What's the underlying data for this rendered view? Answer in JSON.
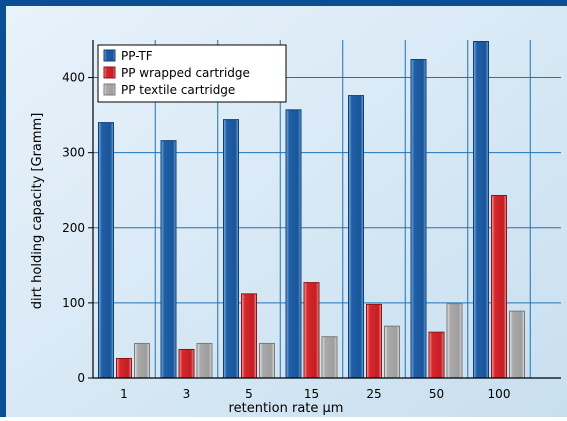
{
  "chart_data": {
    "type": "bar",
    "title": "",
    "xlabel": "retention rate µm",
    "ylabel": "dirt holding capacity [Gramm]",
    "categories": [
      "1",
      "3",
      "5",
      "15",
      "25",
      "50",
      "100"
    ],
    "ylim": [
      0,
      450
    ],
    "yticks": [
      0,
      100,
      200,
      300,
      400
    ],
    "grid": true,
    "legend_position": "top-left",
    "series": [
      {
        "name": "PP-TF",
        "values": [
          340,
          316,
          344,
          357,
          376,
          424,
          448
        ],
        "color": "#1f5fa8"
      },
      {
        "name": "PP wrapped cartridge",
        "values": [
          26,
          38,
          112,
          127,
          98,
          61,
          243
        ],
        "color": "#d8262c"
      },
      {
        "name": "PP textile cartridge",
        "values": [
          46,
          46,
          46,
          55,
          69,
          99,
          89
        ],
        "color": "#b0b0b0"
      }
    ],
    "colors": {
      "frame": "#0a4f93",
      "plot_background": "#d9e9f5",
      "gridline": "#1f73b7",
      "axis": "#000000"
    }
  }
}
